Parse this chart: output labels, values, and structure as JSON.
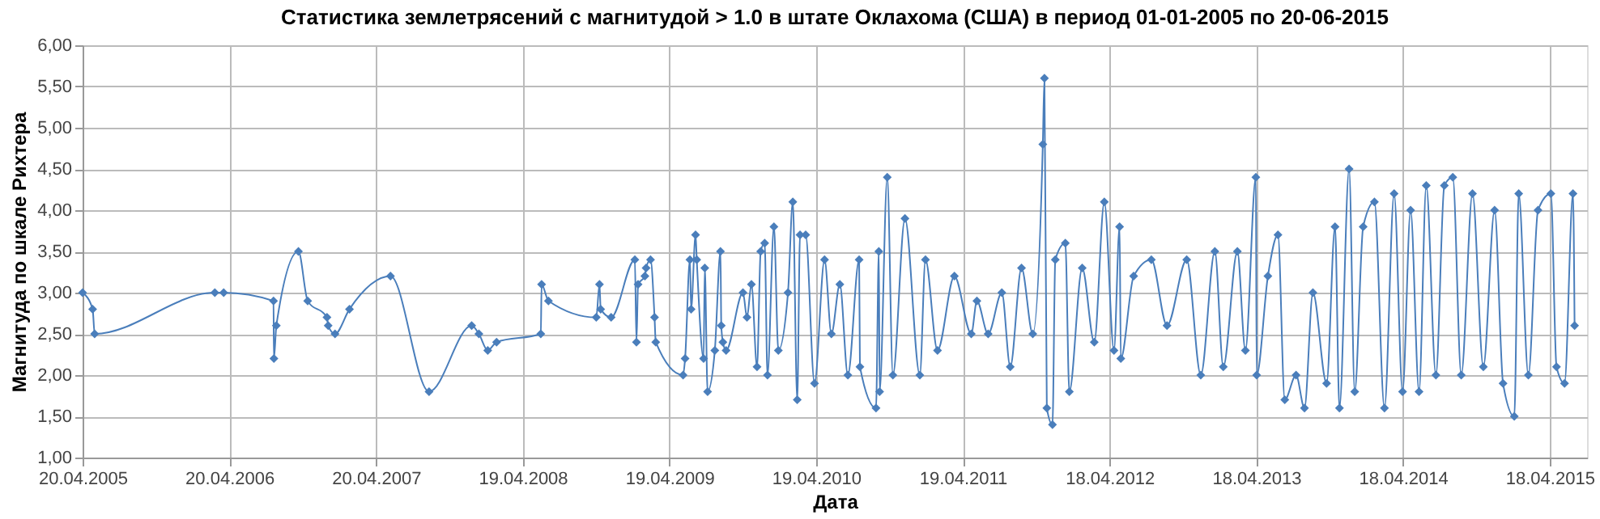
{
  "chart_data": {
    "type": "line",
    "title": "Статистика землетрясений с магнитудой > 1.0 в штате Оклахома (США) в период 01-01-2005 по 20-06-2015",
    "xlabel": "Дата",
    "ylabel": "Магнитуда по шкале Рихтера",
    "xlim": [
      "2005-04-20",
      "2015-07-20"
    ],
    "xticks": [
      {
        "value": "2005-04-20",
        "label": "20.04.2005"
      },
      {
        "value": "2006-04-20",
        "label": "20.04.2006"
      },
      {
        "value": "2007-04-20",
        "label": "20.04.2007"
      },
      {
        "value": "2008-04-19",
        "label": "19.04.2008"
      },
      {
        "value": "2009-04-19",
        "label": "19.04.2009"
      },
      {
        "value": "2010-04-19",
        "label": "19.04.2010"
      },
      {
        "value": "2011-04-19",
        "label": "19.04.2011"
      },
      {
        "value": "2012-04-18",
        "label": "18.04.2012"
      },
      {
        "value": "2013-04-18",
        "label": "18.04.2013"
      },
      {
        "value": "2014-04-18",
        "label": "18.04.2014"
      },
      {
        "value": "2015-04-18",
        "label": "18.04.2015"
      }
    ],
    "ylim": [
      1,
      6
    ],
    "yticks": [
      {
        "value": 1,
        "label": "1,00"
      },
      {
        "value": 1.5,
        "label": "1,50"
      },
      {
        "value": 2,
        "label": "2,00"
      },
      {
        "value": 2.5,
        "label": "2,50"
      },
      {
        "value": 3,
        "label": "3,00"
      },
      {
        "value": 3.5,
        "label": "3,50"
      },
      {
        "value": 4,
        "label": "4,00"
      },
      {
        "value": 4.5,
        "label": "4,50"
      },
      {
        "value": 5,
        "label": "5,00"
      },
      {
        "value": 5.5,
        "label": "5,50"
      },
      {
        "value": 6,
        "label": "6,00"
      }
    ],
    "grid": true,
    "marker": "diamond",
    "line_style": "solid",
    "legend": false,
    "series": [
      {
        "color": "#4a7ebb",
        "x": [
          "2005-04-20",
          "2005-05-15",
          "2005-05-20",
          "2006-03-15",
          "2006-04-06",
          "2006-08-08",
          "2006-08-09",
          "2006-08-15",
          "2006-10-09",
          "2006-11-01",
          "2006-12-19",
          "2006-12-22",
          "2007-01-08",
          "2007-02-13",
          "2007-05-26",
          "2007-08-30",
          "2007-12-14",
          "2008-01-01",
          "2008-01-23",
          "2008-02-14",
          "2008-06-03",
          "2008-06-05",
          "2008-06-22",
          "2008-10-19",
          "2008-10-27",
          "2008-10-30",
          "2008-11-25",
          "2009-01-23",
          "2009-01-27",
          "2009-01-31",
          "2009-02-17",
          "2009-02-20",
          "2009-03-03",
          "2009-03-13",
          "2009-03-16",
          "2009-05-23",
          "2009-05-28",
          "2009-06-09",
          "2009-06-12",
          "2009-06-23",
          "2009-06-26",
          "2009-07-13",
          "2009-07-16",
          "2009-07-23",
          "2009-08-10",
          "2009-08-24",
          "2009-08-26",
          "2009-08-30",
          "2009-09-07",
          "2009-10-19",
          "2009-10-29",
          "2009-11-09",
          "2009-11-23",
          "2009-12-02",
          "2009-12-12",
          "2009-12-19",
          "2010-01-04",
          "2010-01-15",
          "2010-02-08",
          "2010-02-20",
          "2010-03-03",
          "2010-03-10",
          "2010-03-24",
          "2010-04-15",
          "2010-05-10",
          "2010-05-27",
          "2010-06-17",
          "2010-07-07",
          "2010-08-04",
          "2010-08-06",
          "2010-09-15",
          "2010-09-22",
          "2010-09-24",
          "2010-10-13",
          "2010-10-27",
          "2010-11-26",
          "2011-01-02",
          "2011-01-16",
          "2011-02-15",
          "2011-03-29",
          "2011-05-10",
          "2011-05-24",
          "2011-06-21",
          "2011-07-25",
          "2011-08-15",
          "2011-09-12",
          "2011-10-10",
          "2011-11-04",
          "2011-11-08",
          "2011-11-14",
          "2011-11-28",
          "2011-12-05",
          "2011-12-30",
          "2012-01-09",
          "2012-02-10",
          "2012-03-11",
          "2012-04-05",
          "2012-04-29",
          "2012-05-13",
          "2012-05-16",
          "2012-06-17",
          "2012-07-31",
          "2012-09-08",
          "2012-10-27",
          "2012-12-01",
          "2013-01-05",
          "2013-01-26",
          "2013-03-02",
          "2013-03-22",
          "2013-04-17",
          "2013-04-19",
          "2013-05-17",
          "2013-06-11",
          "2013-06-28",
          "2013-07-26",
          "2013-08-16",
          "2013-09-06",
          "2013-10-10",
          "2013-10-31",
          "2013-11-11",
          "2013-12-05",
          "2013-12-19",
          "2014-01-09",
          "2014-02-06",
          "2014-03-03",
          "2014-03-27",
          "2014-04-17",
          "2014-05-07",
          "2014-05-28",
          "2014-06-15",
          "2014-07-09",
          "2014-07-30",
          "2014-08-20",
          "2014-09-10",
          "2014-10-08",
          "2014-11-04",
          "2014-12-02",
          "2014-12-23",
          "2015-01-20",
          "2015-01-31",
          "2015-02-24",
          "2015-03-20",
          "2015-04-21",
          "2015-05-05",
          "2015-05-25",
          "2015-06-15",
          "2015-06-19"
        ],
        "values": [
          3.0,
          2.8,
          2.5,
          3.0,
          3.0,
          2.9,
          2.2,
          2.6,
          3.5,
          2.9,
          2.7,
          2.6,
          2.5,
          2.8,
          3.2,
          1.8,
          2.6,
          2.5,
          2.3,
          2.4,
          2.5,
          3.1,
          2.9,
          2.7,
          3.1,
          2.8,
          2.7,
          3.4,
          2.4,
          3.1,
          3.2,
          3.3,
          3.4,
          2.7,
          2.4,
          2.0,
          2.2,
          3.4,
          2.8,
          3.7,
          3.4,
          2.2,
          3.3,
          1.8,
          2.3,
          3.5,
          2.6,
          2.4,
          2.3,
          3.0,
          2.7,
          3.1,
          2.1,
          3.5,
          3.6,
          2.0,
          3.8,
          2.3,
          3.0,
          4.1,
          1.7,
          3.7,
          3.7,
          1.9,
          3.4,
          2.5,
          3.1,
          2.0,
          3.4,
          2.1,
          1.6,
          3.5,
          1.8,
          4.4,
          2.0,
          3.9,
          2.0,
          3.4,
          2.3,
          3.2,
          2.5,
          2.9,
          2.5,
          3.0,
          2.1,
          3.3,
          2.5,
          4.8,
          5.6,
          1.6,
          1.4,
          3.4,
          3.6,
          1.8,
          3.3,
          2.4,
          4.1,
          2.3,
          3.8,
          2.2,
          3.2,
          3.4,
          2.6,
          3.4,
          2.0,
          3.5,
          2.1,
          3.5,
          2.3,
          4.4,
          2.0,
          3.2,
          3.7,
          1.7,
          2.0,
          1.6,
          3.0,
          1.9,
          3.8,
          1.6,
          4.5,
          1.8,
          3.8,
          4.1,
          1.6,
          4.2,
          1.8,
          4.0,
          1.8,
          4.3,
          2.0,
          4.3,
          4.4,
          2.0,
          4.2,
          2.1,
          4.0,
          1.9,
          1.5,
          4.2,
          2.0,
          4.0,
          4.2,
          2.1,
          1.9,
          4.2,
          2.6
        ]
      }
    ]
  }
}
